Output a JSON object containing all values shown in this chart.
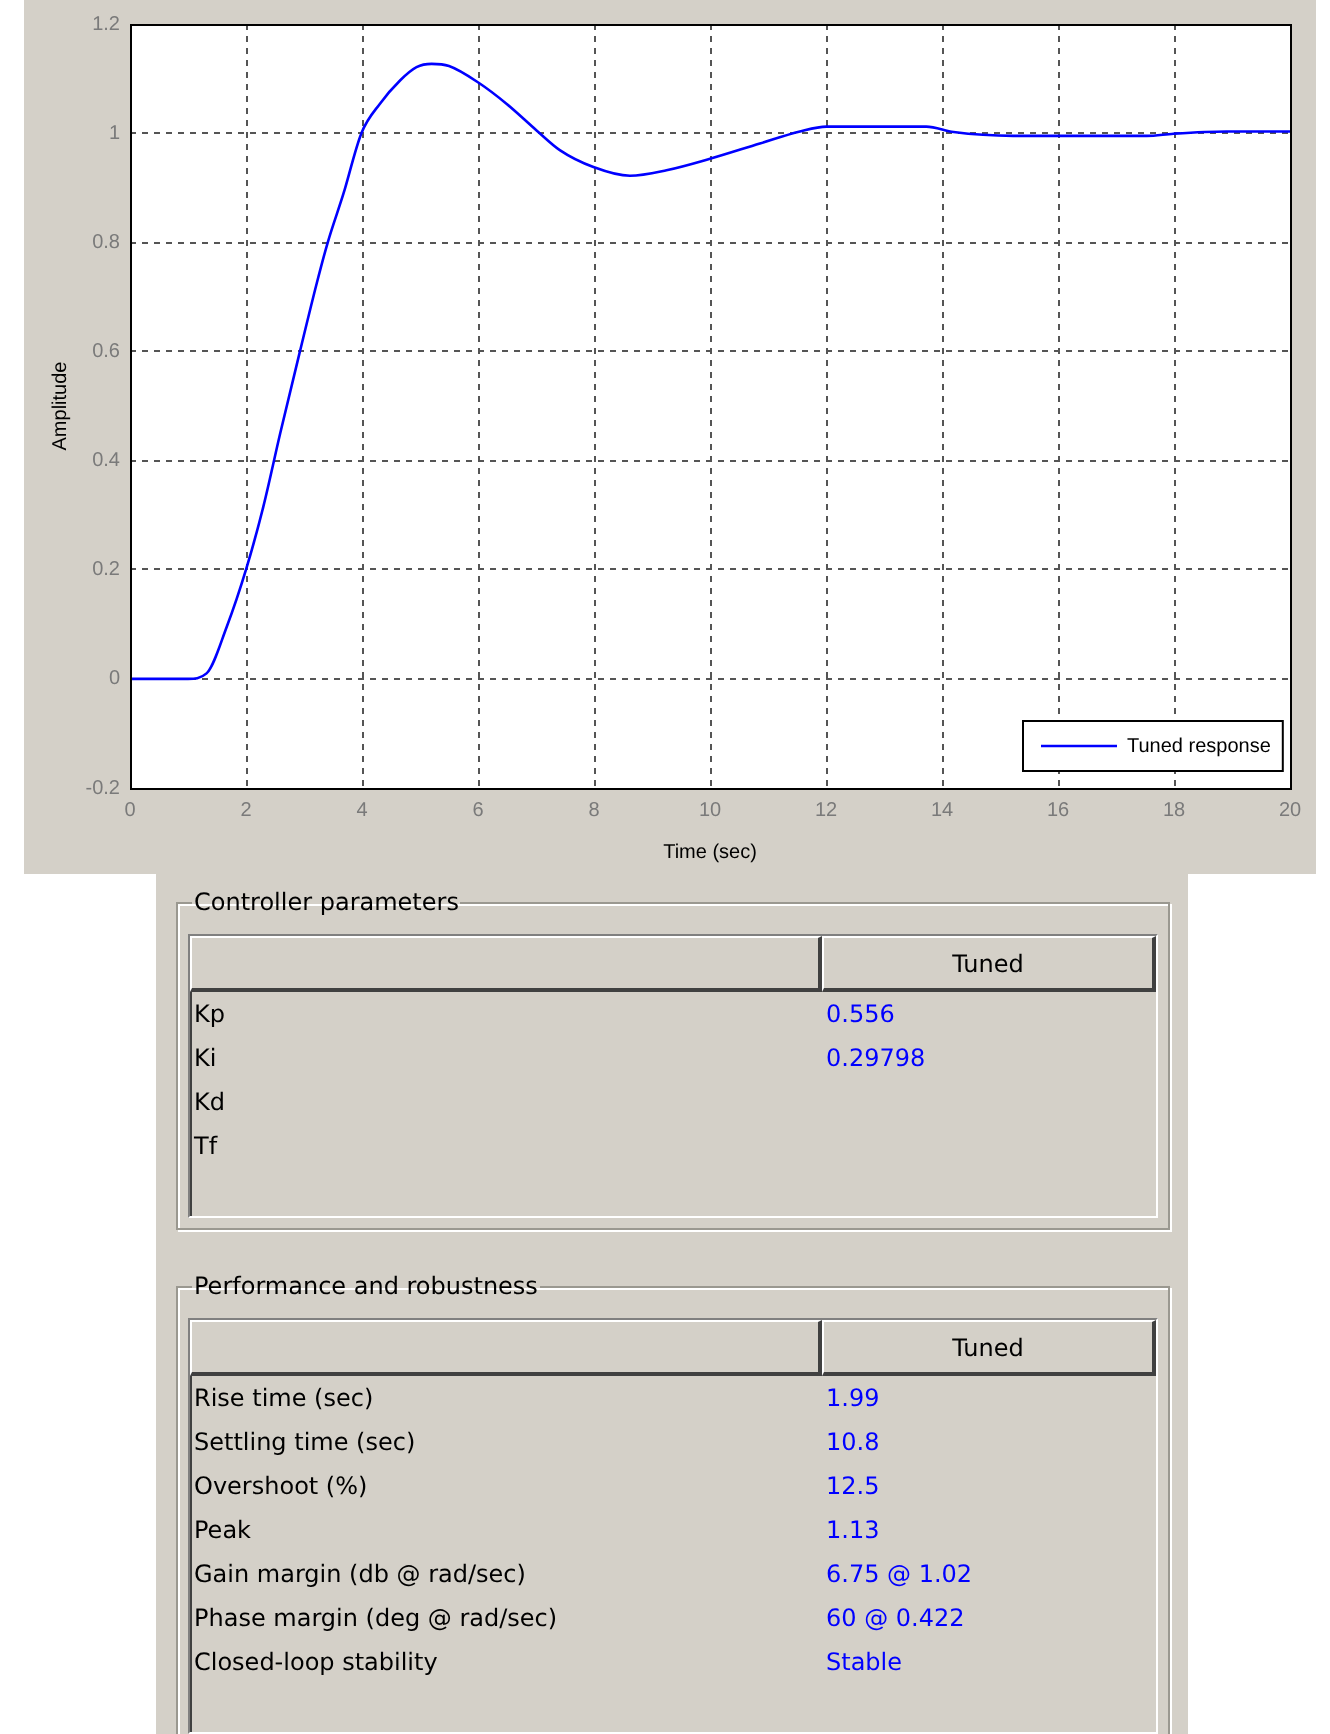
{
  "chart_data": [
    {
      "type": "line",
      "xlabel": "Time (sec)",
      "ylabel": "Amplitude",
      "x": [
        0,
        1.0,
        1.32,
        1.67,
        2.0,
        2.3,
        2.59,
        2.93,
        3.22,
        3.41,
        3.68,
        3.99,
        4.31,
        4.66,
        4.94,
        5.2,
        5.5,
        6.03,
        6.49,
        7.01,
        7.41,
        7.99,
        8.62,
        9.25,
        10.0,
        10.86,
        11.55,
        12.01,
        13.73,
        14.2,
        15.23,
        17.53,
        17.99,
        18.9,
        20
      ],
      "series": [
        {
          "name": "Tuned response",
          "color": "#0000ff",
          "values": [
            0,
            0,
            0.01,
            0.096,
            0.2,
            0.316,
            0.45,
            0.6,
            0.725,
            0.8,
            0.889,
            1.0,
            1.054,
            1.097,
            1.121,
            1.127,
            1.123,
            1.091,
            1.054,
            1.005,
            0.969,
            0.938,
            0.922,
            0.932,
            0.953,
            0.981,
            1.003,
            1.012,
            1.012,
            1.002,
            0.995,
            0.995,
            0.999,
            1.003,
            1.003
          ]
        }
      ],
      "xlim": [
        0,
        20
      ],
      "ylim": [
        -0.2,
        1.2
      ],
      "xticks": [
        0,
        2,
        4,
        6,
        8,
        10,
        12,
        14,
        16,
        18,
        20
      ],
      "yticks": [
        -0.2,
        0,
        0.2,
        0.4,
        0.6,
        0.8,
        1,
        1.2
      ],
      "grid": true,
      "legend": "bottom right",
      "marker": "none",
      "line_style": "solid"
    },
    {
      "type": "other",
      "title": "Controller parameters",
      "categories": [
        "Kp",
        "Ki",
        "Kd",
        "Tf"
      ],
      "series": [
        {
          "name": "Tuned",
          "values": [
            0.556,
            0.29798,
            null,
            null
          ]
        }
      ],
      "data_labels": true
    },
    {
      "type": "other",
      "title": "Performance and robustness",
      "categories": [
        "Rise time (sec)",
        "Settling time (sec)",
        "Overshoot (%)",
        "Peak",
        "Gain margin (db @ rad/sec)",
        "Phase margin (deg @ rad/sec)",
        "Closed-loop stability"
      ],
      "series": [
        {
          "name": "Tuned",
          "values": [
            1.99,
            10.8,
            12.5,
            1.13,
            null,
            null,
            null
          ],
          "value_labels": [
            "1.99",
            "10.8",
            "12.5",
            "1.13",
            "6.75 @ 1.02",
            "60 @ 0.422",
            "Stable"
          ]
        }
      ]
    }
  ]
}
